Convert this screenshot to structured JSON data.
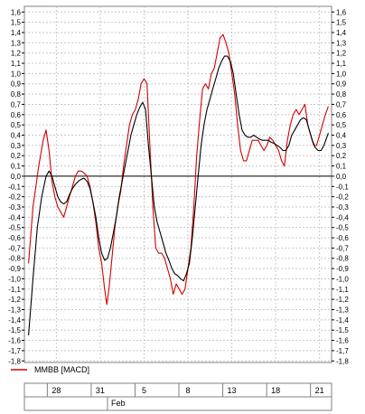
{
  "chart_data": {
    "type": "line",
    "ylim": [
      -1.8,
      1.6
    ],
    "yticks": [
      "1,6",
      "1,5",
      "1,4",
      "1,3",
      "1,2",
      "1,1",
      "1,0",
      "0,9",
      "0,8",
      "0,7",
      "0,6",
      "0,5",
      "0,4",
      "0,3",
      "0,2",
      "0,1",
      "0,0",
      "-0,1",
      "-0,2",
      "-0,3",
      "-0,4",
      "-0,5",
      "-0,6",
      "-0,7",
      "-0,8",
      "-0,9",
      "-1,0",
      "-1,1",
      "-1,2",
      "-1,3",
      "-1,4",
      "-1,5",
      "-1,6",
      "-1,7",
      "-1,8"
    ],
    "grid": true,
    "zero_line": true,
    "x_tick_labels": [
      "28",
      "31",
      "5",
      "8",
      "13",
      "18",
      "21"
    ],
    "x_tick_positions": [
      2,
      5,
      8,
      11,
      14,
      17,
      20
    ],
    "x_range": [
      0,
      20.7
    ],
    "month_label": "Feb",
    "month_position": 5.5,
    "legend": {
      "label": "MMBB [MACD]",
      "placement": "bottom-left"
    },
    "series": [
      {
        "name": "MMBB [MACD]",
        "color": "#d40000",
        "points": [
          [
            0.1,
            -0.85
          ],
          [
            0.4,
            -0.3
          ],
          [
            0.8,
            0.1
          ],
          [
            1.1,
            0.35
          ],
          [
            1.3,
            0.45
          ],
          [
            1.5,
            0.25
          ],
          [
            1.7,
            -0.05
          ],
          [
            1.9,
            -0.2
          ],
          [
            2.1,
            -0.3
          ],
          [
            2.3,
            -0.35
          ],
          [
            2.5,
            -0.4
          ],
          [
            2.7,
            -0.3
          ],
          [
            2.9,
            -0.2
          ],
          [
            3.1,
            -0.1
          ],
          [
            3.3,
            0.0
          ],
          [
            3.5,
            0.05
          ],
          [
            3.7,
            0.05
          ],
          [
            3.9,
            0.03
          ],
          [
            4.1,
            0.0
          ],
          [
            4.3,
            -0.1
          ],
          [
            4.5,
            -0.25
          ],
          [
            4.7,
            -0.45
          ],
          [
            4.9,
            -0.7
          ],
          [
            5.1,
            -0.85
          ],
          [
            5.3,
            -1.1
          ],
          [
            5.45,
            -1.25
          ],
          [
            5.6,
            -1.1
          ],
          [
            5.8,
            -0.8
          ],
          [
            6.0,
            -0.5
          ],
          [
            6.2,
            -0.3
          ],
          [
            6.4,
            -0.15
          ],
          [
            6.6,
            0.1
          ],
          [
            6.8,
            0.3
          ],
          [
            7.0,
            0.5
          ],
          [
            7.2,
            0.6
          ],
          [
            7.4,
            0.65
          ],
          [
            7.6,
            0.75
          ],
          [
            7.8,
            0.9
          ],
          [
            8.0,
            0.95
          ],
          [
            8.2,
            0.9
          ],
          [
            8.4,
            0.3
          ],
          [
            8.6,
            -0.3
          ],
          [
            8.8,
            -0.7
          ],
          [
            9.0,
            -0.75
          ],
          [
            9.2,
            -0.75
          ],
          [
            9.4,
            -0.8
          ],
          [
            9.6,
            -0.9
          ],
          [
            9.8,
            -1.0
          ],
          [
            10.0,
            -1.15
          ],
          [
            10.2,
            -1.05
          ],
          [
            10.4,
            -1.1
          ],
          [
            10.6,
            -1.15
          ],
          [
            10.8,
            -1.1
          ],
          [
            11.0,
            -0.9
          ],
          [
            11.2,
            -0.7
          ],
          [
            11.4,
            -0.3
          ],
          [
            11.6,
            0.2
          ],
          [
            11.8,
            0.55
          ],
          [
            12.0,
            0.85
          ],
          [
            12.2,
            0.9
          ],
          [
            12.4,
            0.85
          ],
          [
            12.6,
            1.0
          ],
          [
            12.8,
            1.05
          ],
          [
            13.0,
            1.2
          ],
          [
            13.2,
            1.35
          ],
          [
            13.4,
            1.38
          ],
          [
            13.6,
            1.3
          ],
          [
            13.8,
            1.2
          ],
          [
            14.0,
            1.0
          ],
          [
            14.2,
            0.8
          ],
          [
            14.4,
            0.5
          ],
          [
            14.6,
            0.25
          ],
          [
            14.8,
            0.15
          ],
          [
            15.0,
            0.15
          ],
          [
            15.2,
            0.25
          ],
          [
            15.4,
            0.35
          ],
          [
            15.6,
            0.35
          ],
          [
            15.8,
            0.35
          ],
          [
            16.0,
            0.3
          ],
          [
            16.2,
            0.25
          ],
          [
            16.4,
            0.3
          ],
          [
            16.6,
            0.38
          ],
          [
            16.8,
            0.35
          ],
          [
            17.0,
            0.3
          ],
          [
            17.2,
            0.25
          ],
          [
            17.4,
            0.15
          ],
          [
            17.6,
            0.1
          ],
          [
            17.8,
            0.35
          ],
          [
            18.0,
            0.5
          ],
          [
            18.2,
            0.6
          ],
          [
            18.4,
            0.65
          ],
          [
            18.6,
            0.6
          ],
          [
            18.8,
            0.65
          ],
          [
            19.0,
            0.7
          ],
          [
            19.2,
            0.5
          ],
          [
            19.4,
            0.4
          ],
          [
            19.6,
            0.3
          ],
          [
            19.8,
            0.3
          ],
          [
            20.0,
            0.4
          ],
          [
            20.2,
            0.5
          ],
          [
            20.4,
            0.6
          ],
          [
            20.6,
            0.68
          ]
        ]
      },
      {
        "name": "",
        "color": "#000000",
        "points": [
          [
            0.1,
            -1.55
          ],
          [
            0.4,
            -1.0
          ],
          [
            0.7,
            -0.5
          ],
          [
            1.0,
            -0.2
          ],
          [
            1.3,
            0.0
          ],
          [
            1.5,
            0.05
          ],
          [
            1.7,
            0.0
          ],
          [
            1.9,
            -0.1
          ],
          [
            2.1,
            -0.2
          ],
          [
            2.3,
            -0.25
          ],
          [
            2.5,
            -0.27
          ],
          [
            2.7,
            -0.25
          ],
          [
            2.9,
            -0.18
          ],
          [
            3.1,
            -0.12
          ],
          [
            3.3,
            -0.08
          ],
          [
            3.5,
            -0.05
          ],
          [
            3.7,
            -0.03
          ],
          [
            3.9,
            -0.02
          ],
          [
            4.1,
            -0.05
          ],
          [
            4.3,
            -0.12
          ],
          [
            4.5,
            -0.25
          ],
          [
            4.7,
            -0.4
          ],
          [
            4.9,
            -0.6
          ],
          [
            5.1,
            -0.75
          ],
          [
            5.3,
            -0.82
          ],
          [
            5.5,
            -0.8
          ],
          [
            5.7,
            -0.7
          ],
          [
            5.9,
            -0.55
          ],
          [
            6.1,
            -0.4
          ],
          [
            6.3,
            -0.2
          ],
          [
            6.5,
            -0.05
          ],
          [
            6.7,
            0.1
          ],
          [
            6.9,
            0.25
          ],
          [
            7.1,
            0.4
          ],
          [
            7.3,
            0.5
          ],
          [
            7.5,
            0.6
          ],
          [
            7.7,
            0.67
          ],
          [
            7.9,
            0.72
          ],
          [
            8.1,
            0.65
          ],
          [
            8.3,
            0.3
          ],
          [
            8.5,
            0.0
          ],
          [
            8.7,
            -0.3
          ],
          [
            8.9,
            -0.45
          ],
          [
            9.1,
            -0.55
          ],
          [
            9.3,
            -0.65
          ],
          [
            9.5,
            -0.75
          ],
          [
            9.7,
            -0.82
          ],
          [
            9.9,
            -0.9
          ],
          [
            10.1,
            -0.95
          ],
          [
            10.3,
            -0.97
          ],
          [
            10.5,
            -1.0
          ],
          [
            10.7,
            -1.02
          ],
          [
            10.9,
            -0.95
          ],
          [
            11.1,
            -0.85
          ],
          [
            11.3,
            -0.6
          ],
          [
            11.5,
            -0.3
          ],
          [
            11.7,
            0.0
          ],
          [
            11.9,
            0.3
          ],
          [
            12.1,
            0.5
          ],
          [
            12.3,
            0.65
          ],
          [
            12.5,
            0.75
          ],
          [
            12.7,
            0.85
          ],
          [
            12.9,
            0.95
          ],
          [
            13.1,
            1.05
          ],
          [
            13.3,
            1.12
          ],
          [
            13.5,
            1.17
          ],
          [
            13.7,
            1.17
          ],
          [
            13.9,
            1.12
          ],
          [
            14.1,
            1.0
          ],
          [
            14.3,
            0.8
          ],
          [
            14.5,
            0.6
          ],
          [
            14.7,
            0.45
          ],
          [
            14.9,
            0.4
          ],
          [
            15.1,
            0.38
          ],
          [
            15.3,
            0.38
          ],
          [
            15.5,
            0.4
          ],
          [
            15.7,
            0.38
          ],
          [
            15.9,
            0.36
          ],
          [
            16.1,
            0.35
          ],
          [
            16.3,
            0.35
          ],
          [
            16.5,
            0.35
          ],
          [
            16.7,
            0.33
          ],
          [
            16.9,
            0.32
          ],
          [
            17.1,
            0.3
          ],
          [
            17.3,
            0.28
          ],
          [
            17.5,
            0.25
          ],
          [
            17.7,
            0.25
          ],
          [
            17.9,
            0.3
          ],
          [
            18.1,
            0.4
          ],
          [
            18.3,
            0.45
          ],
          [
            18.5,
            0.5
          ],
          [
            18.7,
            0.55
          ],
          [
            18.9,
            0.57
          ],
          [
            19.1,
            0.55
          ],
          [
            19.3,
            0.45
          ],
          [
            19.5,
            0.35
          ],
          [
            19.7,
            0.28
          ],
          [
            19.9,
            0.25
          ],
          [
            20.1,
            0.25
          ],
          [
            20.3,
            0.3
          ],
          [
            20.5,
            0.38
          ],
          [
            20.6,
            0.42
          ]
        ]
      }
    ]
  }
}
